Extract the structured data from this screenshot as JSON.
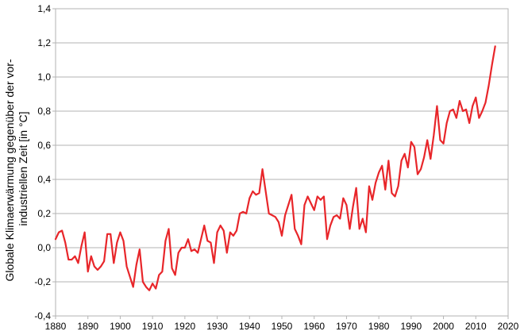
{
  "chart_data": {
    "type": "line",
    "title": "",
    "xlabel": "",
    "ylabel_lines": [
      "Globale Klimaerwärmung gegenüber der vor-",
      "industriellen Zeit [in °C]"
    ],
    "xlim": [
      1880,
      2020
    ],
    "ylim": [
      -0.4,
      1.4
    ],
    "x_ticks": [
      1880,
      1890,
      1900,
      1910,
      1920,
      1930,
      1940,
      1950,
      1960,
      1970,
      1980,
      1990,
      2000,
      2010,
      2020
    ],
    "x_tick_labels": [
      "1880",
      "1890",
      "1900",
      "1910",
      "1920",
      "1930",
      "1940",
      "1950",
      "1960",
      "1970",
      "1980",
      "1990",
      "2000",
      "2010",
      "2020"
    ],
    "y_ticks": [
      -0.4,
      -0.2,
      0.0,
      0.2,
      0.4,
      0.6,
      0.8,
      1.0,
      1.2,
      1.4
    ],
    "y_tick_labels": [
      "-0,4",
      "-0,2",
      "0,0",
      "0,2",
      "0,4",
      "0,6",
      "0,8",
      "1,0",
      "1,2",
      "1,4"
    ],
    "grid": true,
    "legend": "none",
    "series": [
      {
        "color": "#e8262a",
        "x": [
          1880,
          1881,
          1882,
          1883,
          1884,
          1885,
          1886,
          1887,
          1888,
          1889,
          1890,
          1891,
          1892,
          1893,
          1894,
          1895,
          1896,
          1897,
          1898,
          1899,
          1900,
          1901,
          1902,
          1903,
          1904,
          1905,
          1906,
          1907,
          1908,
          1909,
          1910,
          1911,
          1912,
          1913,
          1914,
          1915,
          1916,
          1917,
          1918,
          1919,
          1920,
          1921,
          1922,
          1923,
          1924,
          1925,
          1926,
          1927,
          1928,
          1929,
          1930,
          1931,
          1932,
          1933,
          1934,
          1935,
          1936,
          1937,
          1938,
          1939,
          1940,
          1941,
          1942,
          1943,
          1944,
          1945,
          1946,
          1947,
          1948,
          1949,
          1950,
          1951,
          1952,
          1953,
          1954,
          1955,
          1956,
          1957,
          1958,
          1959,
          1960,
          1961,
          1962,
          1963,
          1964,
          1965,
          1966,
          1967,
          1968,
          1969,
          1970,
          1971,
          1972,
          1973,
          1974,
          1975,
          1976,
          1977,
          1978,
          1979,
          1980,
          1981,
          1982,
          1983,
          1984,
          1985,
          1986,
          1987,
          1988,
          1989,
          1990,
          1991,
          1992,
          1993,
          1994,
          1995,
          1996,
          1997,
          1998,
          1999,
          2000,
          2001,
          2002,
          2003,
          2004,
          2005,
          2006,
          2007,
          2008,
          2009,
          2010,
          2011,
          2012,
          2013,
          2014,
          2015,
          2016
        ],
        "y": [
          0.05,
          0.09,
          0.1,
          0.03,
          -0.07,
          -0.07,
          -0.05,
          -0.09,
          0.01,
          0.09,
          -0.14,
          -0.05,
          -0.11,
          -0.13,
          -0.11,
          -0.08,
          0.08,
          0.08,
          -0.09,
          0.03,
          0.09,
          0.04,
          -0.11,
          -0.17,
          -0.23,
          -0.1,
          -0.01,
          -0.2,
          -0.23,
          -0.25,
          -0.21,
          -0.24,
          -0.16,
          -0.14,
          0.04,
          0.11,
          -0.12,
          -0.16,
          -0.03,
          0.0,
          0.0,
          0.05,
          -0.02,
          -0.01,
          -0.03,
          0.05,
          0.13,
          0.04,
          0.03,
          -0.09,
          0.09,
          0.13,
          0.1,
          -0.03,
          0.09,
          0.07,
          0.1,
          0.2,
          0.21,
          0.2,
          0.29,
          0.33,
          0.31,
          0.32,
          0.46,
          0.33,
          0.2,
          0.19,
          0.18,
          0.15,
          0.07,
          0.19,
          0.25,
          0.31,
          0.11,
          0.07,
          0.02,
          0.25,
          0.3,
          0.26,
          0.22,
          0.3,
          0.28,
          0.3,
          0.05,
          0.13,
          0.18,
          0.19,
          0.17,
          0.29,
          0.25,
          0.11,
          0.24,
          0.35,
          0.11,
          0.17,
          0.09,
          0.36,
          0.28,
          0.38,
          0.44,
          0.48,
          0.34,
          0.51,
          0.32,
          0.3,
          0.36,
          0.51,
          0.55,
          0.47,
          0.62,
          0.59,
          0.43,
          0.46,
          0.53,
          0.63,
          0.52,
          0.66,
          0.83,
          0.63,
          0.61,
          0.73,
          0.8,
          0.81,
          0.76,
          0.86,
          0.8,
          0.81,
          0.73,
          0.83,
          0.88,
          0.76,
          0.8,
          0.85,
          0.95,
          1.07,
          1.18
        ]
      }
    ]
  }
}
